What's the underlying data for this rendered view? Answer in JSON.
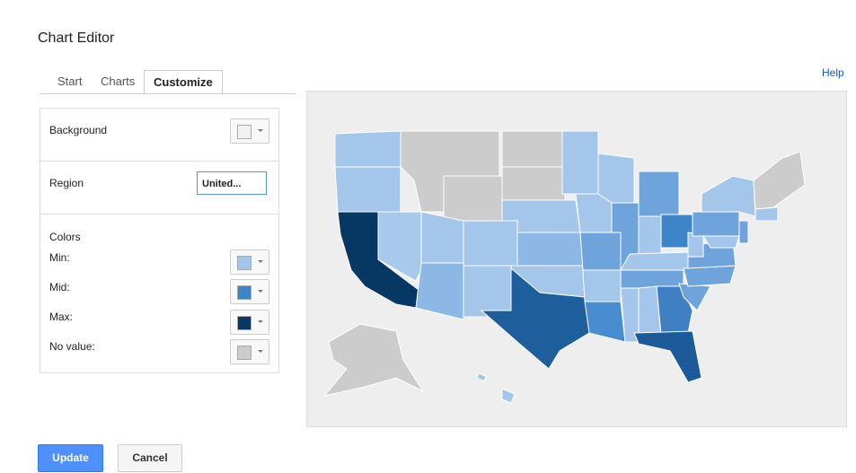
{
  "header": {
    "title": "Chart Editor",
    "help": "Help"
  },
  "tabs": [
    "Start",
    "Charts",
    "Customize"
  ],
  "panel": {
    "background": "Background",
    "region": "Region",
    "region_value": "United...",
    "colors": "Colors",
    "min": "Min:",
    "mid": "Mid:",
    "max": "Max:",
    "no_value": "No value:"
  },
  "buttons": {
    "update": "Update",
    "cancel": "Cancel"
  }
}
